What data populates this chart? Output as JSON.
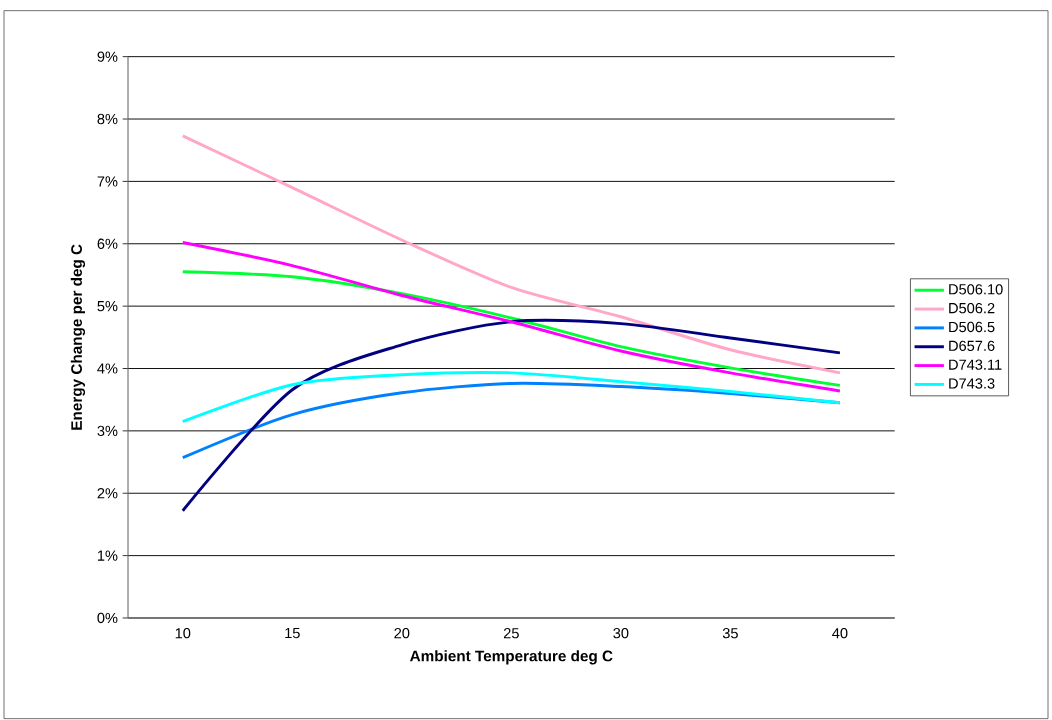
{
  "chart_data": {
    "type": "line",
    "xlabel": "Ambient Temperature deg C",
    "ylabel": "Energy Change per deg C",
    "x": [
      10,
      15,
      20,
      25,
      30,
      35,
      40
    ],
    "series": [
      {
        "name": "D506.10",
        "color": "#00ff33",
        "values": [
          5.55,
          5.47,
          5.2,
          4.81,
          4.35,
          4.01,
          3.73
        ]
      },
      {
        "name": "D506.2",
        "color": "#ffa6c9",
        "values": [
          7.73,
          6.9,
          6.06,
          5.3,
          4.83,
          4.3,
          3.93
        ]
      },
      {
        "name": "D506.5",
        "color": "#0080ff",
        "values": [
          2.57,
          3.26,
          3.61,
          3.76,
          3.71,
          3.6,
          3.45
        ]
      },
      {
        "name": "D657.6",
        "color": "#000080",
        "values": [
          1.72,
          3.66,
          4.38,
          4.75,
          4.72,
          4.49,
          4.25
        ]
      },
      {
        "name": "D743.11",
        "color": "#ff00ff",
        "values": [
          6.02,
          5.65,
          5.17,
          4.75,
          4.28,
          3.93,
          3.64
        ]
      },
      {
        "name": "D743.3",
        "color": "#00ffff",
        "values": [
          3.15,
          3.74,
          3.9,
          3.93,
          3.79,
          3.63,
          3.45
        ]
      }
    ],
    "xlim": [
      7.5,
      42.5
    ],
    "xticks": [
      10,
      15,
      20,
      25,
      30,
      35,
      40
    ],
    "ylim": [
      0,
      9
    ],
    "yticks": [
      {
        "value": 0,
        "label": "0%"
      },
      {
        "value": 1,
        "label": "1%"
      },
      {
        "value": 2,
        "label": "2%"
      },
      {
        "value": 3,
        "label": "3%"
      },
      {
        "value": 4,
        "label": "4%"
      },
      {
        "value": 5,
        "label": "5%"
      },
      {
        "value": 6,
        "label": "6%"
      },
      {
        "value": 7,
        "label": "7%"
      },
      {
        "value": 8,
        "label": "8%"
      },
      {
        "value": 9,
        "label": "9%"
      }
    ],
    "grid": "y",
    "legend": "right",
    "marker": "none",
    "line_style": "solid"
  }
}
